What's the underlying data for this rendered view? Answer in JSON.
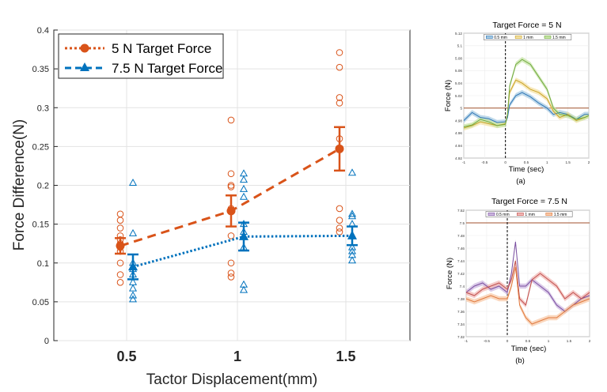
{
  "chart_data": [
    {
      "type": "line",
      "title": "",
      "xlabel": "Tactor Displacement(mm)",
      "ylabel": "Force Difference(N)",
      "categories": [
        "0.5",
        "1",
        "1.5"
      ],
      "yticks": [
        "0",
        "0.05",
        "0.1",
        "0.15",
        "0.2",
        "0.25",
        "0.3",
        "0.35",
        "0.4"
      ],
      "ylim": [
        0,
        0.4
      ],
      "grid": true,
      "legend_position": "top-left",
      "series": [
        {
          "name": "5 N Target Force",
          "color": "#D95319",
          "marker": "circle",
          "line_style": "dashed",
          "mean": [
            0.122,
            0.167,
            0.247
          ],
          "error": [
            0.01,
            0.02,
            0.028
          ],
          "individual_points": [
            [
              0.163,
              0.155,
              0.145,
              0.135,
              0.13,
              0.125,
              0.12,
              0.115,
              0.1,
              0.085,
              0.075
            ],
            [
              0.284,
              0.215,
              0.2,
              0.198,
              0.17,
              0.135,
              0.1,
              0.087,
              0.082
            ],
            [
              0.371,
              0.352,
              0.313,
              0.306,
              0.26,
              0.17,
              0.155,
              0.145,
              0.14
            ]
          ]
        },
        {
          "name": "7.5 N Target Force",
          "color": "#0072BD",
          "marker": "triangle",
          "line_style": "dotted",
          "mean": [
            0.095,
            0.134,
            0.135
          ],
          "error": [
            0.016,
            0.018,
            0.012
          ],
          "individual_points": [
            [
              0.203,
              0.138,
              0.1,
              0.092,
              0.085,
              0.075,
              0.067,
              0.058,
              0.053
            ],
            [
              0.215,
              0.207,
              0.195,
              0.185,
              0.15,
              0.14,
              0.12,
              0.072,
              0.065
            ],
            [
              0.216,
              0.163,
              0.16,
              0.15,
              0.12,
              0.115,
              0.11,
              0.103
            ]
          ]
        }
      ]
    },
    {
      "type": "line",
      "title": "Target Force = 5 N",
      "xlabel": "Time (sec)",
      "ylabel": "Force (N)",
      "caption": "(a)",
      "xticks": [
        "-1",
        "-0.5",
        "0",
        "0.5",
        "1",
        "1.5",
        "2"
      ],
      "xlim": [
        -1,
        2
      ],
      "yticks": [
        "5.12",
        "5.1",
        "5.08",
        "5.06",
        "5.04",
        "5.02",
        "5",
        "4.98",
        "4.96",
        "4.94",
        "4.92"
      ],
      "ylim": [
        4.92,
        5.12
      ],
      "target_line": 5,
      "marker_line_x": 0,
      "legend_position": "top",
      "series": [
        {
          "name": "0.5 mm",
          "color": "#2E75B6",
          "band_color": "#A9CCE3",
          "x": [
            -1,
            -0.8,
            -0.6,
            -0.4,
            -0.2,
            0,
            0.05,
            0.1,
            0.25,
            0.4,
            0.6,
            0.8,
            1.0,
            1.15,
            1.3,
            1.5,
            1.7,
            1.9,
            2
          ],
          "y": [
            4.98,
            4.993,
            4.985,
            4.983,
            4.977,
            4.978,
            4.985,
            5.005,
            5.02,
            5.025,
            5.018,
            5.008,
            5.0,
            4.99,
            4.993,
            4.99,
            4.982,
            4.99,
            4.99
          ]
        },
        {
          "name": "1 mm",
          "color": "#C9A227",
          "band_color": "#F4E2A6",
          "x": [
            -1,
            -0.8,
            -0.6,
            -0.4,
            -0.2,
            0,
            0.05,
            0.1,
            0.25,
            0.4,
            0.6,
            0.8,
            1.0,
            1.15,
            1.3,
            1.5,
            1.7,
            1.9,
            2
          ],
          "y": [
            4.968,
            4.972,
            4.978,
            4.975,
            4.972,
            4.975,
            4.99,
            5.025,
            5.045,
            5.04,
            5.03,
            5.025,
            5.015,
            4.995,
            4.985,
            4.99,
            4.98,
            4.985,
            4.988
          ]
        },
        {
          "name": "1.5 mm",
          "color": "#70A83F",
          "band_color": "#C8E6A8",
          "x": [
            -1,
            -0.8,
            -0.6,
            -0.4,
            -0.2,
            0,
            0.05,
            0.1,
            0.25,
            0.4,
            0.6,
            0.8,
            1.0,
            1.15,
            1.3,
            1.5,
            1.7,
            1.9,
            2
          ],
          "y": [
            4.97,
            4.973,
            4.982,
            4.978,
            4.972,
            4.974,
            4.99,
            5.035,
            5.07,
            5.078,
            5.07,
            5.05,
            5.03,
            5.0,
            4.99,
            4.988,
            4.982,
            4.985,
            4.988
          ]
        }
      ]
    },
    {
      "type": "line",
      "title": "Target Force = 7.5 N",
      "xlabel": "Time (sec)",
      "ylabel": "Force (N)",
      "caption": "(b)",
      "xticks": [
        "-1",
        "-0.5",
        "0",
        "0.5",
        "1",
        "1.5",
        "2"
      ],
      "xlim": [
        -1,
        2
      ],
      "yticks": [
        "7.52",
        "7.5",
        "7.48",
        "7.46",
        "7.44",
        "7.42",
        "7.4",
        "7.38",
        "7.36",
        "7.34",
        "7.32"
      ],
      "ylim": [
        7.32,
        7.52
      ],
      "target_line": 7.5,
      "marker_line_x": 0,
      "legend_position": "top",
      "series": [
        {
          "name": "0.5 mm",
          "color": "#7A4FA0",
          "band_color": "#CDB8E0",
          "x": [
            -1,
            -0.8,
            -0.6,
            -0.4,
            -0.2,
            0,
            0.1,
            0.2,
            0.3,
            0.45,
            0.6,
            0.8,
            1.0,
            1.2,
            1.4,
            1.6,
            1.8,
            2
          ],
          "y": [
            7.39,
            7.4,
            7.405,
            7.395,
            7.4,
            7.39,
            7.42,
            7.47,
            7.4,
            7.4,
            7.41,
            7.4,
            7.39,
            7.37,
            7.36,
            7.37,
            7.38,
            7.385
          ]
        },
        {
          "name": "1 mm",
          "color": "#C0504D",
          "band_color": "#F2B8B6",
          "x": [
            -1,
            -0.8,
            -0.6,
            -0.4,
            -0.2,
            0,
            0.1,
            0.2,
            0.3,
            0.45,
            0.6,
            0.8,
            1.0,
            1.2,
            1.4,
            1.6,
            1.8,
            2
          ],
          "y": [
            7.39,
            7.385,
            7.395,
            7.4,
            7.405,
            7.395,
            7.41,
            7.44,
            7.38,
            7.37,
            7.41,
            7.42,
            7.41,
            7.4,
            7.38,
            7.39,
            7.38,
            7.39
          ]
        },
        {
          "name": "1.5 mm",
          "color": "#E07A3F",
          "band_color": "#F8C9A8",
          "x": [
            -1,
            -0.8,
            -0.6,
            -0.4,
            -0.2,
            0,
            0.1,
            0.2,
            0.3,
            0.45,
            0.6,
            0.8,
            1.0,
            1.2,
            1.4,
            1.6,
            1.8,
            2
          ],
          "y": [
            7.38,
            7.375,
            7.38,
            7.385,
            7.38,
            7.38,
            7.4,
            7.43,
            7.37,
            7.35,
            7.34,
            7.345,
            7.35,
            7.35,
            7.36,
            7.37,
            7.375,
            7.38
          ]
        }
      ]
    }
  ]
}
